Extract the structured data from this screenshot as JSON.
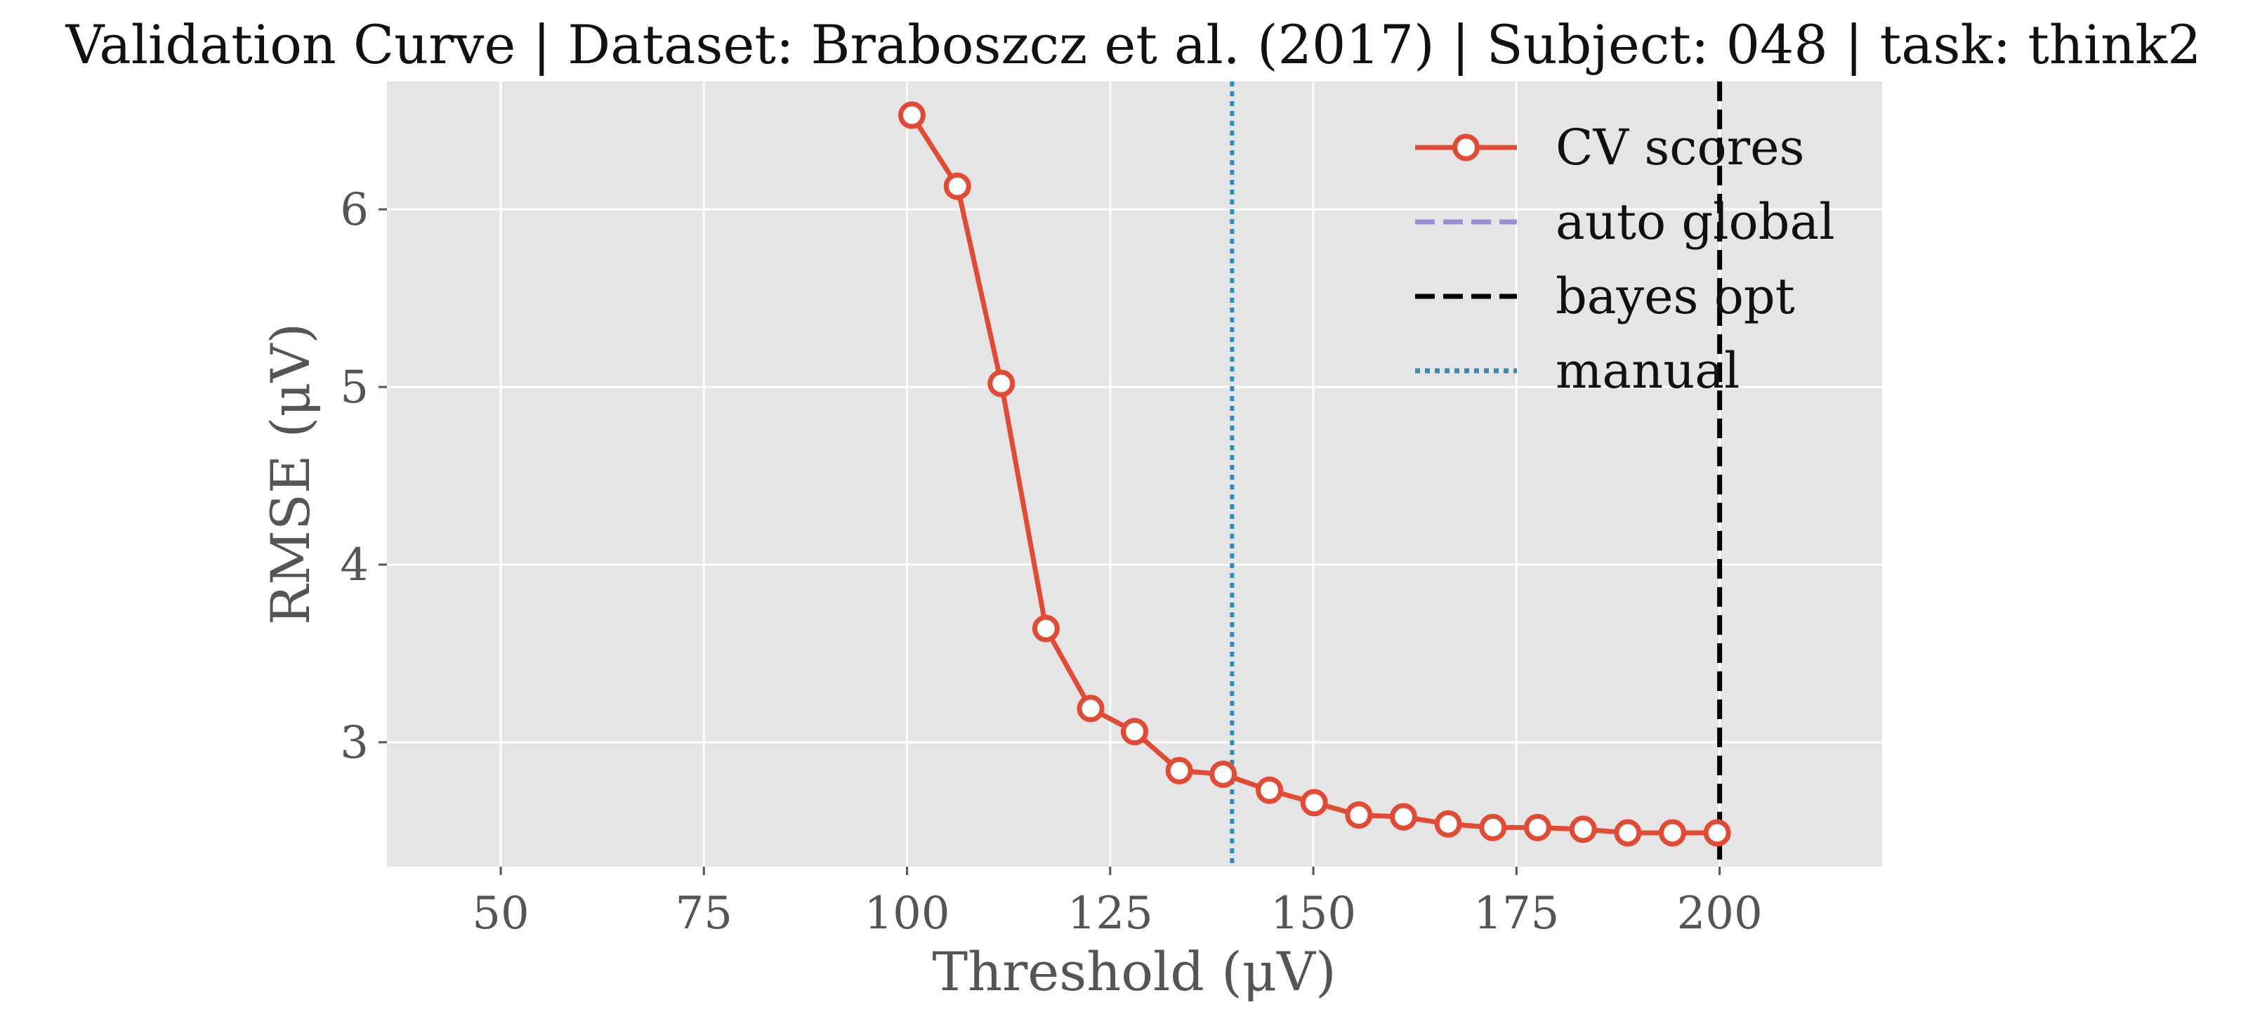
{
  "chart_data": {
    "type": "line",
    "title": "Validation Curve | Dataset: Braboszcz et al. (2017) | Subject: 048 | task: think2",
    "xlabel": "Threshold (μV)",
    "ylabel": "RMSE (μV)",
    "xlim": [
      36,
      220
    ],
    "ylim": [
      2.3,
      6.72
    ],
    "xticks": [
      50,
      75,
      100,
      125,
      150,
      175,
      200
    ],
    "yticks": [
      3,
      4,
      5,
      6
    ],
    "grid": true,
    "legend_position": "top-right",
    "series": [
      {
        "name": "CV scores",
        "color": "#E24A33",
        "marker": "circle-open",
        "x": [
          100.6,
          106.2,
          111.6,
          117.1,
          122.6,
          128.0,
          133.5,
          138.9,
          144.6,
          150.1,
          155.6,
          161.1,
          166.6,
          172.1,
          177.6,
          183.2,
          188.7,
          194.2,
          199.7
        ],
        "y": [
          6.53,
          6.13,
          5.02,
          3.64,
          3.19,
          3.06,
          2.84,
          2.82,
          2.73,
          2.66,
          2.59,
          2.58,
          2.54,
          2.52,
          2.52,
          2.51,
          2.49,
          2.49,
          2.49
        ]
      }
    ],
    "vlines": [
      {
        "name": "auto global",
        "x": null,
        "color": "#988ED5",
        "style": "dashed"
      },
      {
        "name": "bayes opt",
        "x": 200,
        "color": "#000000",
        "style": "dashed"
      },
      {
        "name": "manual",
        "x": 140,
        "color": "#348ABD",
        "style": "dotted"
      }
    ]
  }
}
